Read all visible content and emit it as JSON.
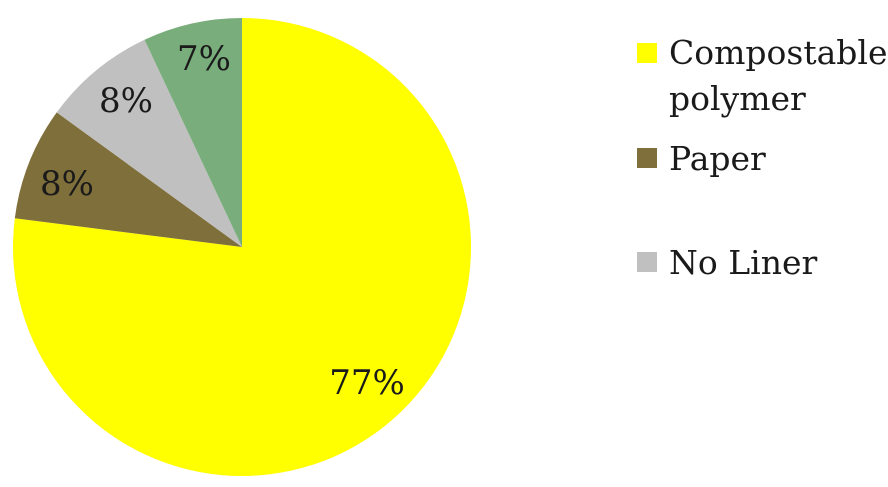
{
  "chart_data": {
    "type": "pie",
    "slices": [
      {
        "name": "Compostable polymer",
        "legend_lines": [
          "Compostable",
          "polymer"
        ],
        "value": 77,
        "label": "77%",
        "color": "#FFFF00"
      },
      {
        "name": "Paper",
        "legend_lines": [
          "Paper"
        ],
        "value": 8,
        "label": "8%",
        "color": "#7F6F3A"
      },
      {
        "name": "No Liner",
        "legend_lines": [
          "No Liner"
        ],
        "value": 8,
        "label": "8%",
        "color": "#C0C0C0"
      },
      {
        "name": "",
        "legend_lines": [],
        "value": 7,
        "label": "7%",
        "color": "#79AD7B"
      }
    ],
    "legend_position": "right"
  }
}
